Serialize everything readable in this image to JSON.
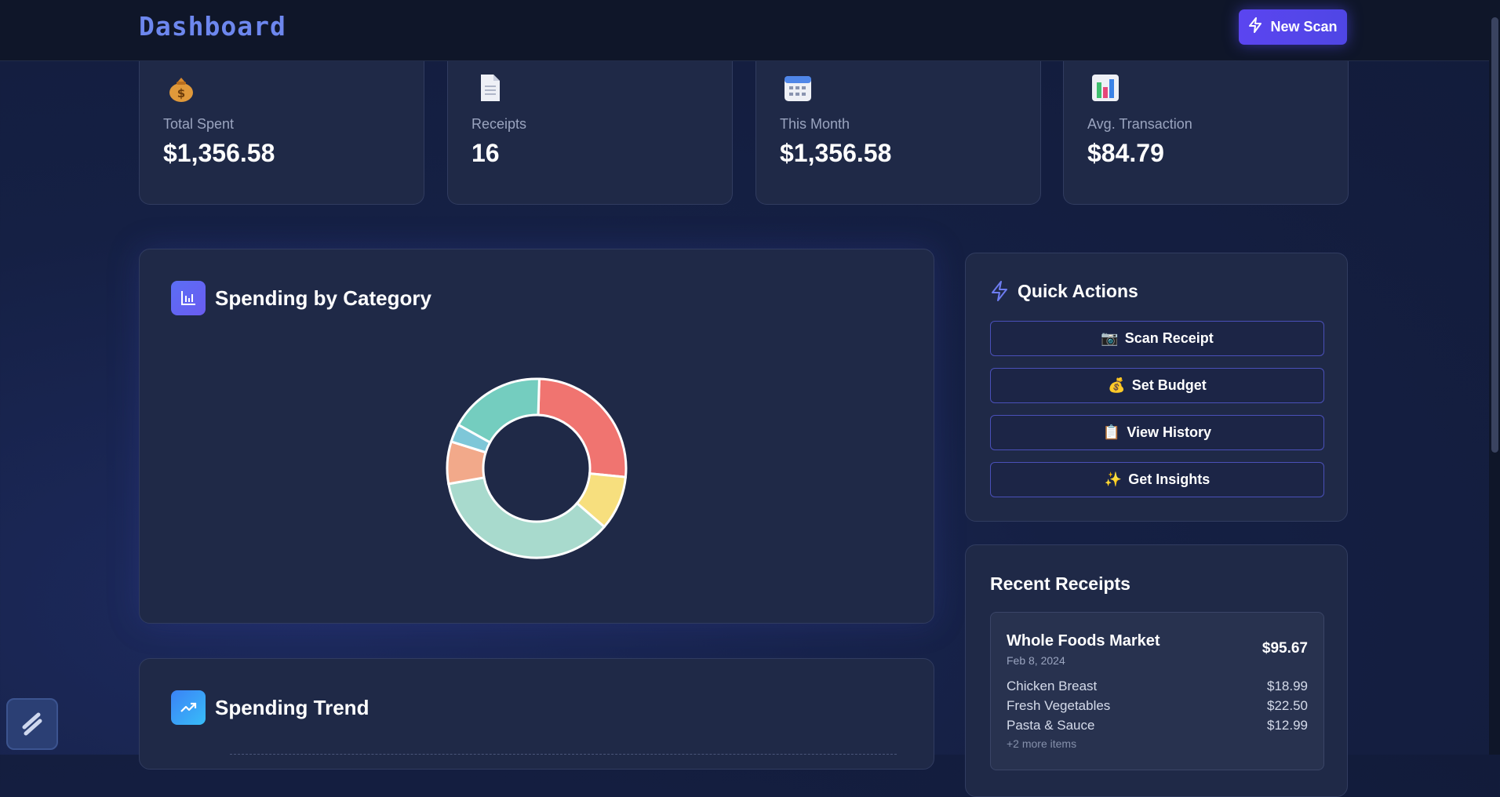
{
  "header": {
    "title": "Dashboard",
    "new_scan_label": "New Scan"
  },
  "stats": [
    {
      "label": "Total Spent",
      "value": "$1,356.58",
      "icon": "money-bag-icon"
    },
    {
      "label": "Receipts",
      "value": "16",
      "icon": "document-icon"
    },
    {
      "label": "This Month",
      "value": "$1,356.58",
      "icon": "calendar-icon"
    },
    {
      "label": "Avg. Transaction",
      "value": "$84.79",
      "icon": "bar-chart-icon"
    }
  ],
  "spending_by_category": {
    "title": "Spending by Category"
  },
  "chart_data": {
    "type": "pie",
    "title": "Spending by Category",
    "values": [
      24,
      9,
      33,
      7,
      3,
      16
    ],
    "colors": [
      "#f07470",
      "#f7df7e",
      "#a8dacd",
      "#f2a98a",
      "#7ec7d8",
      "#74cdbf"
    ]
  },
  "spending_trend": {
    "title": "Spending Trend"
  },
  "quick_actions": {
    "title": "Quick Actions",
    "buttons": [
      {
        "emoji": "📷",
        "label": "Scan Receipt"
      },
      {
        "emoji": "💰",
        "label": "Set Budget"
      },
      {
        "emoji": "📋",
        "label": "View History"
      },
      {
        "emoji": "✨",
        "label": "Get Insights"
      }
    ]
  },
  "recent_receipts": {
    "title": "Recent Receipts",
    "items": [
      {
        "merchant": "Whole Foods Market",
        "date": "Feb 8, 2024",
        "total": "$95.67",
        "lines": [
          {
            "name": "Chicken Breast",
            "price": "$18.99"
          },
          {
            "name": "Fresh Vegetables",
            "price": "$22.50"
          },
          {
            "name": "Pasta & Sauce",
            "price": "$12.99"
          }
        ],
        "more": "+2 more items"
      }
    ]
  },
  "colors": {
    "accent": "#4f46e5",
    "brand": "#6d87ee",
    "card_bg": "#1f2947"
  }
}
